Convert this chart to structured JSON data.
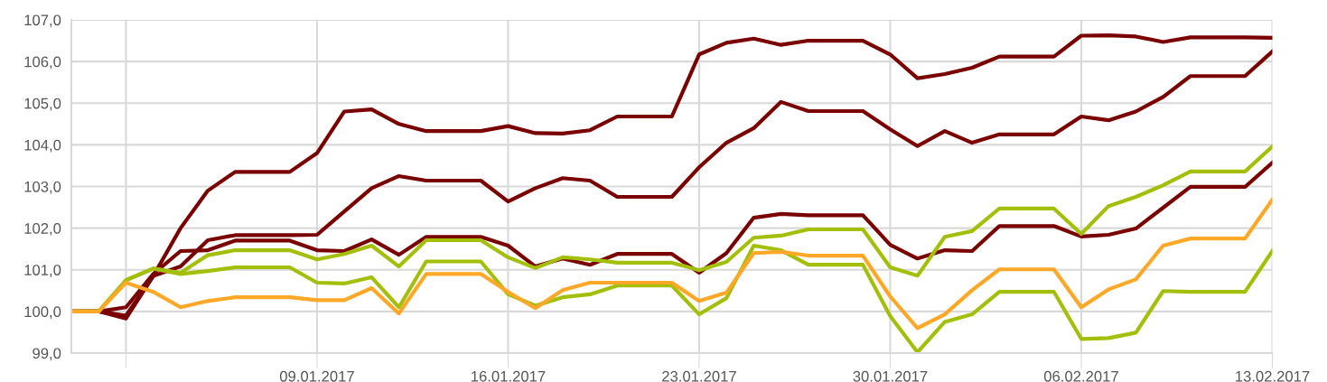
{
  "chart_data": {
    "type": "line",
    "x": [
      "2016-12-31",
      "2017-01-01",
      "2017-01-02",
      "2017-01-03",
      "2017-01-04",
      "2017-01-05",
      "2017-01-06",
      "2017-01-07",
      "2017-01-08",
      "2017-01-09",
      "2017-01-10",
      "2017-01-11",
      "2017-01-12",
      "2017-01-13",
      "2017-01-14",
      "2017-01-15",
      "2017-01-16",
      "2017-01-17",
      "2017-01-18",
      "2017-01-19",
      "2017-01-20",
      "2017-01-21",
      "2017-01-22",
      "2017-01-23",
      "2017-01-24",
      "2017-01-25",
      "2017-01-26",
      "2017-01-27",
      "2017-01-28",
      "2017-01-29",
      "2017-01-30",
      "2017-01-31",
      "2017-02-01",
      "2017-02-02",
      "2017-02-03",
      "2017-02-04",
      "2017-02-05",
      "2017-02-06",
      "2017-02-07",
      "2017-02-08",
      "2017-02-09",
      "2017-02-10",
      "2017-02-11",
      "2017-02-12",
      "2017-02-13"
    ],
    "series": [
      {
        "color": "#7a0000",
        "values": [
          100,
          100,
          99.83,
          100.85,
          102.0,
          102.9,
          103.35,
          103.35,
          103.35,
          103.8,
          104.8,
          104.85,
          104.5,
          104.33,
          104.33,
          104.33,
          104.45,
          104.28,
          104.27,
          104.35,
          104.68,
          104.68,
          104.68,
          106.17,
          106.45,
          106.55,
          106.4,
          106.5,
          106.5,
          106.5,
          106.17,
          105.6,
          105.7,
          105.85,
          106.12,
          106.12,
          106.12,
          106.62,
          106.63,
          106.6,
          106.47,
          106.58,
          106.58,
          106.58,
          106.57
        ]
      },
      {
        "color": "#7a0000",
        "values": [
          100,
          100,
          99.9,
          100.85,
          101.08,
          101.71,
          101.83,
          101.83,
          101.83,
          101.84,
          102.4,
          102.96,
          103.25,
          103.14,
          103.14,
          103.14,
          102.64,
          102.96,
          103.2,
          103.14,
          102.75,
          102.75,
          102.75,
          103.46,
          104.05,
          104.4,
          105.03,
          104.81,
          104.81,
          104.81,
          104.37,
          103.97,
          104.33,
          104.05,
          104.25,
          104.25,
          104.25,
          104.68,
          104.59,
          104.8,
          105.15,
          105.65,
          105.65,
          105.65,
          106.24
        ]
      },
      {
        "color": "#7a0000",
        "values": [
          100,
          100,
          100.1,
          100.9,
          101.45,
          101.47,
          101.7,
          101.7,
          101.7,
          101.47,
          101.45,
          101.73,
          101.36,
          101.79,
          101.79,
          101.79,
          101.58,
          101.08,
          101.27,
          101.12,
          101.38,
          101.38,
          101.38,
          100.93,
          101.4,
          102.25,
          102.34,
          102.31,
          102.31,
          102.31,
          101.6,
          101.27,
          101.47,
          101.45,
          102.05,
          102.05,
          102.05,
          101.8,
          101.84,
          101.99,
          102.49,
          102.99,
          102.99,
          102.99,
          103.57
        ]
      },
      {
        "color": "#a3bf0a",
        "values": [
          100,
          100,
          100.75,
          101.03,
          100.93,
          101.35,
          101.47,
          101.47,
          101.47,
          101.25,
          101.38,
          101.58,
          101.08,
          101.71,
          101.71,
          101.71,
          101.3,
          101.04,
          101.3,
          101.25,
          101.17,
          101.17,
          101.17,
          100.99,
          101.19,
          101.77,
          101.82,
          101.97,
          101.97,
          101.97,
          101.06,
          100.86,
          101.79,
          101.93,
          102.47,
          102.47,
          102.47,
          101.86,
          102.53,
          102.75,
          103.03,
          103.36,
          103.36,
          103.36,
          103.96
        ]
      },
      {
        "color": "#a3bf0a",
        "values": [
          100,
          100,
          100.75,
          101.03,
          100.9,
          100.97,
          101.06,
          101.06,
          101.06,
          100.69,
          100.67,
          100.82,
          100.1,
          101.2,
          101.2,
          101.2,
          100.41,
          100.14,
          100.34,
          100.41,
          100.62,
          100.62,
          100.62,
          99.93,
          100.32,
          101.58,
          101.47,
          101.12,
          101.12,
          101.12,
          99.89,
          99.02,
          99.75,
          99.93,
          100.47,
          100.47,
          100.47,
          99.34,
          99.36,
          99.49,
          100.49,
          100.47,
          100.47,
          100.47,
          101.45
        ]
      },
      {
        "color": "#ffa726",
        "values": [
          100,
          100,
          100.69,
          100.47,
          100.1,
          100.25,
          100.34,
          100.34,
          100.34,
          100.27,
          100.27,
          100.56,
          99.95,
          100.9,
          100.9,
          100.9,
          100.47,
          100.08,
          100.51,
          100.69,
          100.69,
          100.69,
          100.69,
          100.25,
          100.45,
          101.4,
          101.43,
          101.34,
          101.34,
          101.34,
          100.36,
          99.6,
          99.93,
          100.51,
          101.01,
          101.01,
          101.01,
          100.1,
          100.53,
          100.77,
          101.58,
          101.75,
          101.75,
          101.75,
          102.68
        ]
      }
    ],
    "xlim": [
      "2016-12-31",
      "2017-02-13"
    ],
    "xticks": [
      {
        "value": "2017-01-02",
        "label": null
      },
      {
        "value": "2017-01-09",
        "label": "09.01.2017"
      },
      {
        "value": "2017-01-16",
        "label": "16.01.2017"
      },
      {
        "value": "2017-01-23",
        "label": "23.01.2017"
      },
      {
        "value": "2017-01-30",
        "label": "30.01.2017"
      },
      {
        "value": "2017-02-06",
        "label": "06.02.2017"
      },
      {
        "value": "2017-02-13",
        "label": "13.02.2017"
      }
    ],
    "ylim": [
      99,
      107
    ],
    "yticks": [
      {
        "value": 99,
        "label": "99,0"
      },
      {
        "value": 100,
        "label": "100,0"
      },
      {
        "value": 101,
        "label": "101,0"
      },
      {
        "value": 102,
        "label": "102,0"
      },
      {
        "value": 103,
        "label": "103,0"
      },
      {
        "value": 104,
        "label": "104,0"
      },
      {
        "value": 105,
        "label": "105,0"
      },
      {
        "value": 106,
        "label": "106,0"
      },
      {
        "value": 107,
        "label": "107,0"
      }
    ],
    "grid": true,
    "marker": "none",
    "line_style": "solid"
  }
}
